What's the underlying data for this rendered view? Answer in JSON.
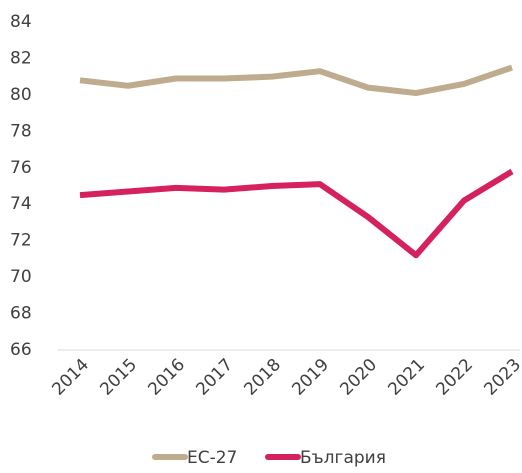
{
  "chart_data": {
    "type": "line",
    "categories": [
      "2014",
      "2015",
      "2016",
      "2017",
      "2018",
      "2019",
      "2020",
      "2021",
      "2022",
      "2023"
    ],
    "series": [
      {
        "name": "ЕС-27",
        "color": "#bfac8e",
        "values": [
          80.8,
          80.5,
          80.9,
          80.9,
          81.0,
          81.3,
          80.4,
          80.1,
          80.6,
          81.5
        ]
      },
      {
        "name": "България",
        "color": "#d5215f",
        "values": [
          74.5,
          74.7,
          74.9,
          74.8,
          75.0,
          75.1,
          73.3,
          71.2,
          74.2,
          75.8
        ]
      }
    ],
    "ylim": [
      66,
      84
    ],
    "yticks": [
      66,
      68,
      70,
      72,
      74,
      76,
      78,
      80,
      82,
      84
    ],
    "grid": false,
    "legend": "bottom"
  }
}
